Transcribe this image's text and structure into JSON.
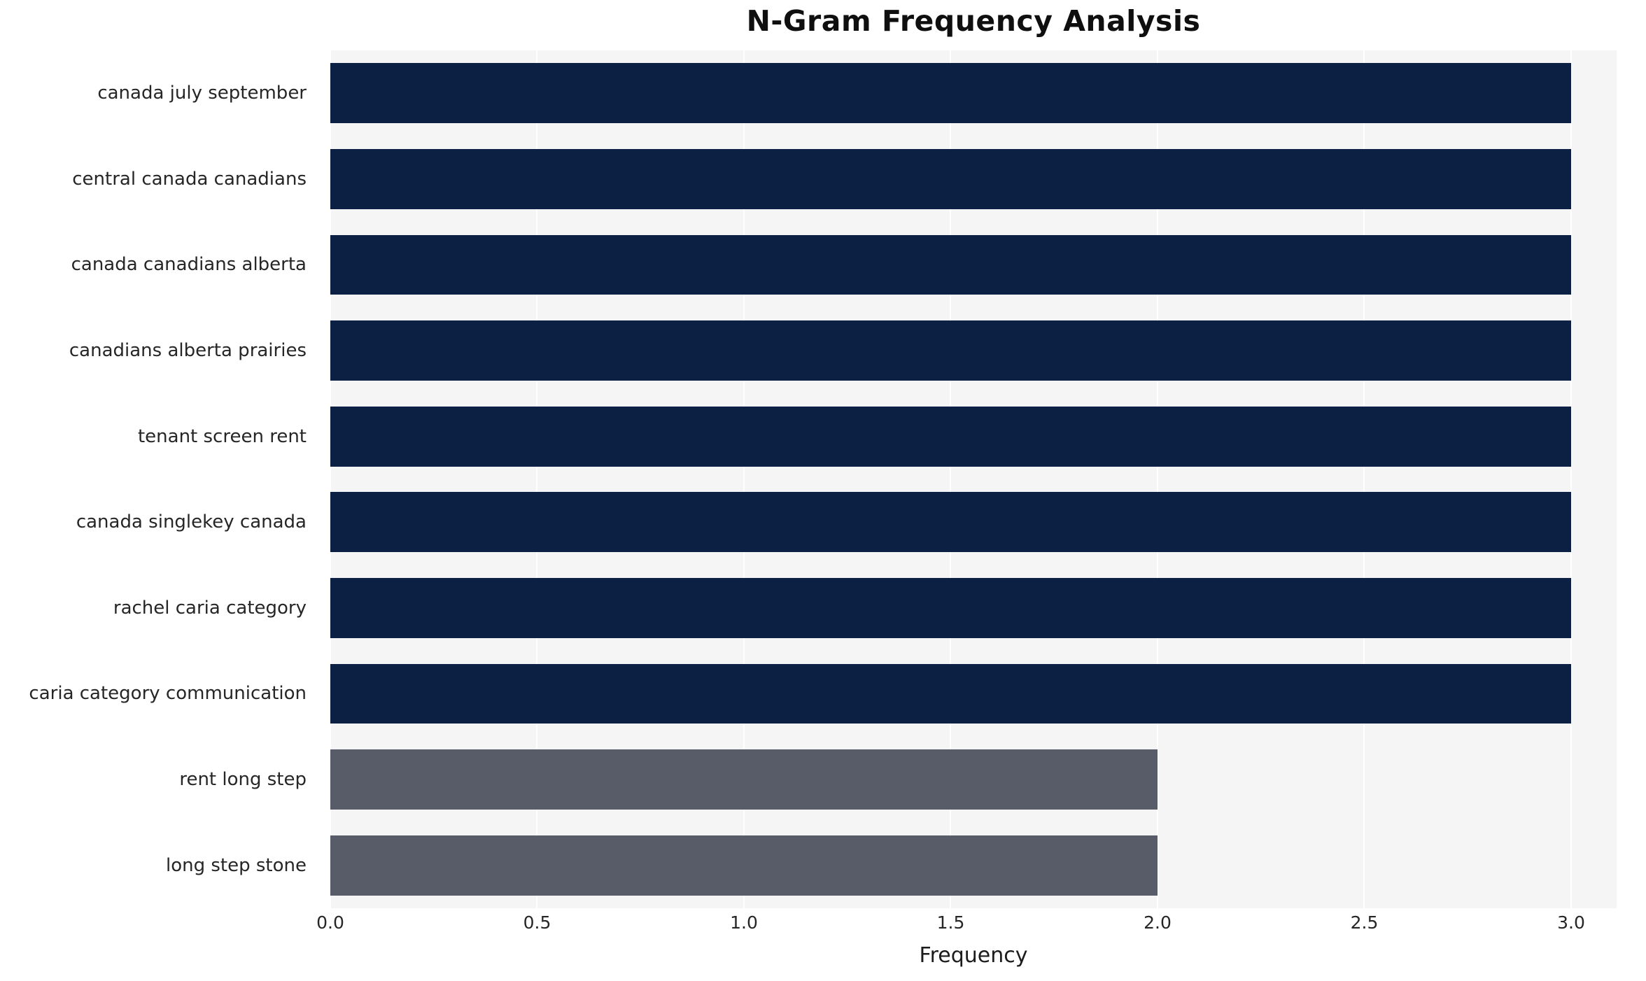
{
  "title": "N-Gram Frequency Analysis",
  "chart_data": {
    "type": "bar",
    "orientation": "horizontal",
    "title": "N-Gram Frequency Analysis",
    "categories": [
      "canada july september",
      "central canada canadians",
      "canada canadians alberta",
      "canadians alberta prairies",
      "tenant screen rent",
      "canada singlekey canada",
      "rachel caria category",
      "caria category communication",
      "rent long step",
      "long step stone"
    ],
    "values": [
      3,
      3,
      3,
      3,
      3,
      3,
      3,
      3,
      2,
      2
    ],
    "xlabel": "Frequency",
    "ylabel": "",
    "xlim": [
      0,
      3.11
    ],
    "xtick_values": [
      0,
      0.5,
      1.0,
      1.5,
      2.0,
      2.5,
      3.0
    ],
    "xtick_labels": [
      "0.0",
      "0.5",
      "1.0",
      "1.5",
      "2.0",
      "2.5",
      "3.0"
    ],
    "grid": true,
    "legend": "none",
    "colors": {
      "high": "#0c2044",
      "low": "#575c68",
      "high_threshold": 3,
      "plot_bg": "#f5f5f6",
      "grid": "#ffffff"
    }
  }
}
